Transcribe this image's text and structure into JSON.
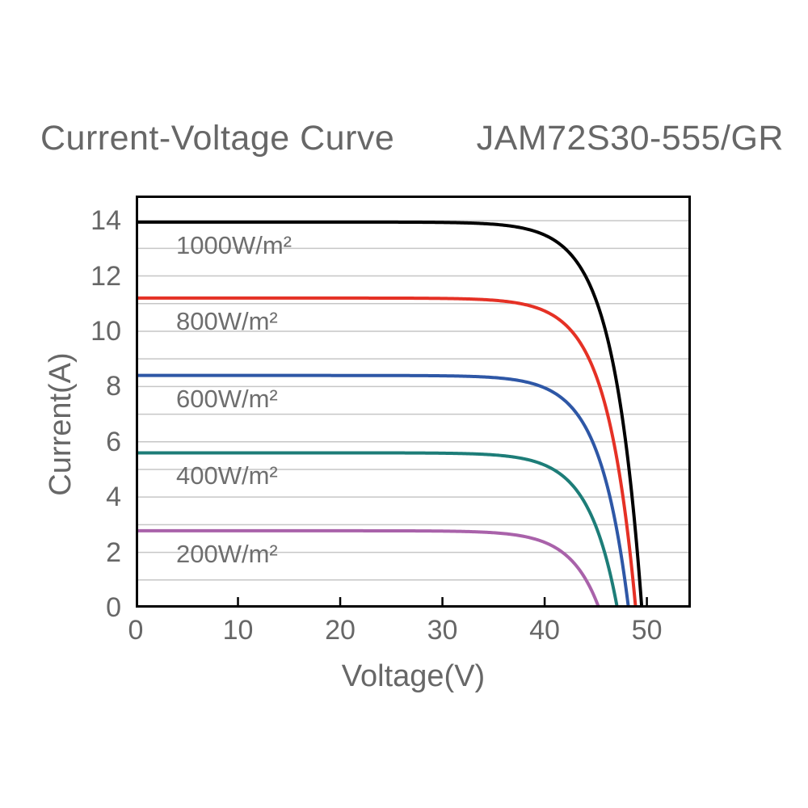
{
  "title": {
    "main": "Current-Voltage Curve",
    "model": "JAM72S30-555/GR"
  },
  "chart_data": {
    "type": "line",
    "title": "Current-Voltage Curve JAM72S30-555/GR",
    "xlabel": "Voltage(V)",
    "ylabel": "Current(A)",
    "xlim": [
      0,
      54.3
    ],
    "ylim": [
      0,
      14.91
    ],
    "xticks": [
      0,
      10,
      20,
      30,
      40,
      50
    ],
    "yticks": [
      0,
      2,
      4,
      6,
      8,
      10,
      12,
      14
    ],
    "grid": {
      "horizontal_every": 1,
      "vertical": false,
      "color": "#c6c6c6"
    },
    "legend_position": "inline-labels-below-curves",
    "curve_model": "I(V) = Isc * (1 - exp((V - Voc) / falloff_v))",
    "falloff_v": 2.8,
    "series": [
      {
        "name": "1000W/m²",
        "isc": 13.95,
        "voc": 49.5,
        "color": "#000000",
        "points": [
          [
            0,
            13.95
          ],
          [
            10,
            13.95
          ],
          [
            20,
            13.95
          ],
          [
            30,
            13.94
          ],
          [
            40,
            13.48
          ],
          [
            44,
            11.99
          ],
          [
            46,
            9.95
          ],
          [
            48,
            5.78
          ],
          [
            49.5,
            0
          ]
        ]
      },
      {
        "name": "800W/m²",
        "isc": 11.2,
        "voc": 48.9,
        "color": "#e53125",
        "points": [
          [
            0,
            11.2
          ],
          [
            10,
            11.2
          ],
          [
            20,
            11.2
          ],
          [
            30,
            11.19
          ],
          [
            40,
            10.73
          ],
          [
            44,
            9.25
          ],
          [
            46,
            7.22
          ],
          [
            48,
            3.08
          ],
          [
            48.9,
            0
          ]
        ]
      },
      {
        "name": "600W/m²",
        "isc": 8.4,
        "voc": 48.2,
        "color": "#2e57a6",
        "points": [
          [
            0,
            8.4
          ],
          [
            10,
            8.4
          ],
          [
            20,
            8.4
          ],
          [
            30,
            8.39
          ],
          [
            40,
            7.95
          ],
          [
            44,
            6.53
          ],
          [
            46,
            4.57
          ],
          [
            48,
            0.58
          ],
          [
            48.2,
            0
          ]
        ]
      },
      {
        "name": "400W/m²",
        "isc": 5.6,
        "voc": 47.1,
        "color": "#1d7d78",
        "points": [
          [
            0,
            5.6
          ],
          [
            10,
            5.6
          ],
          [
            20,
            5.6
          ],
          [
            30,
            5.59
          ],
          [
            40,
            5.16
          ],
          [
            44,
            3.75
          ],
          [
            46,
            1.82
          ],
          [
            47.1,
            0
          ]
        ]
      },
      {
        "name": "200W/m²",
        "isc": 2.78,
        "voc": 45.3,
        "color": "#a962aa",
        "points": [
          [
            0,
            2.78
          ],
          [
            10,
            2.78
          ],
          [
            20,
            2.78
          ],
          [
            30,
            2.77
          ],
          [
            40,
            2.36
          ],
          [
            42,
            1.92
          ],
          [
            44,
            1.03
          ],
          [
            45.3,
            0
          ]
        ]
      }
    ],
    "styles": {
      "axis_color": "#000000",
      "text_color": "#676767",
      "background": "#ffffff",
      "curve_width": 4
    }
  }
}
